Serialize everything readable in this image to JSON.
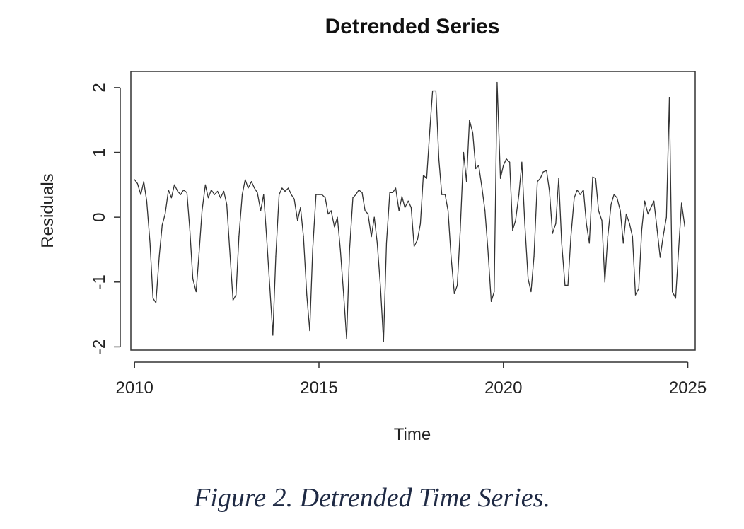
{
  "caption": "Figure 2. Detrended Time Series.",
  "chart_data": {
    "type": "line",
    "title": "Detrended Series",
    "xlabel": "Time",
    "ylabel": "Residuals",
    "xlim": [
      2009.9,
      2025.2
    ],
    "ylim": [
      -2.05,
      2.25
    ],
    "xticks": [
      2010,
      2015,
      2020,
      2025
    ],
    "xtick_labels": [
      "2010",
      "2015",
      "2020",
      "2025"
    ],
    "yticks": [
      -2,
      -1,
      0,
      1,
      2
    ],
    "ytick_labels": [
      "-2",
      "-1",
      "0",
      "1",
      "2"
    ],
    "grid": false,
    "legend": "none",
    "series": [
      {
        "color": "#333333",
        "points": [
          [
            2010.0,
            0.58
          ],
          [
            2010.08,
            0.52
          ],
          [
            2010.17,
            0.35
          ],
          [
            2010.25,
            0.55
          ],
          [
            2010.33,
            0.25
          ],
          [
            2010.42,
            -0.4
          ],
          [
            2010.5,
            -1.25
          ],
          [
            2010.58,
            -1.32
          ],
          [
            2010.67,
            -0.6
          ],
          [
            2010.75,
            -0.12
          ],
          [
            2010.83,
            0.05
          ],
          [
            2010.92,
            0.42
          ],
          [
            2011.0,
            0.3
          ],
          [
            2011.08,
            0.5
          ],
          [
            2011.17,
            0.4
          ],
          [
            2011.25,
            0.35
          ],
          [
            2011.33,
            0.42
          ],
          [
            2011.42,
            0.38
          ],
          [
            2011.5,
            -0.2
          ],
          [
            2011.58,
            -0.95
          ],
          [
            2011.67,
            -1.15
          ],
          [
            2011.75,
            -0.55
          ],
          [
            2011.83,
            0.1
          ],
          [
            2011.92,
            0.5
          ],
          [
            2012.0,
            0.3
          ],
          [
            2012.08,
            0.42
          ],
          [
            2012.17,
            0.35
          ],
          [
            2012.25,
            0.4
          ],
          [
            2012.33,
            0.3
          ],
          [
            2012.42,
            0.4
          ],
          [
            2012.5,
            0.2
          ],
          [
            2012.58,
            -0.5
          ],
          [
            2012.67,
            -1.28
          ],
          [
            2012.75,
            -1.2
          ],
          [
            2012.83,
            -0.3
          ],
          [
            2012.92,
            0.35
          ],
          [
            2013.0,
            0.58
          ],
          [
            2013.08,
            0.45
          ],
          [
            2013.17,
            0.55
          ],
          [
            2013.25,
            0.45
          ],
          [
            2013.33,
            0.38
          ],
          [
            2013.42,
            0.1
          ],
          [
            2013.5,
            0.35
          ],
          [
            2013.58,
            -0.3
          ],
          [
            2013.67,
            -1.1
          ],
          [
            2013.75,
            -1.82
          ],
          [
            2013.83,
            -0.6
          ],
          [
            2013.92,
            0.35
          ],
          [
            2014.0,
            0.45
          ],
          [
            2014.08,
            0.4
          ],
          [
            2014.17,
            0.45
          ],
          [
            2014.25,
            0.35
          ],
          [
            2014.33,
            0.28
          ],
          [
            2014.42,
            -0.05
          ],
          [
            2014.5,
            0.15
          ],
          [
            2014.58,
            -0.3
          ],
          [
            2014.67,
            -1.2
          ],
          [
            2014.75,
            -1.75
          ],
          [
            2014.83,
            -0.5
          ],
          [
            2014.92,
            0.35
          ],
          [
            2015.0,
            0.35
          ],
          [
            2015.08,
            0.35
          ],
          [
            2015.17,
            0.3
          ],
          [
            2015.25,
            0.05
          ],
          [
            2015.33,
            0.1
          ],
          [
            2015.42,
            -0.15
          ],
          [
            2015.5,
            0.0
          ],
          [
            2015.58,
            -0.5
          ],
          [
            2015.67,
            -1.2
          ],
          [
            2015.75,
            -1.88
          ],
          [
            2015.83,
            -0.5
          ],
          [
            2015.92,
            0.3
          ],
          [
            2016.0,
            0.35
          ],
          [
            2016.08,
            0.42
          ],
          [
            2016.17,
            0.38
          ],
          [
            2016.25,
            0.1
          ],
          [
            2016.33,
            0.05
          ],
          [
            2016.42,
            -0.3
          ],
          [
            2016.5,
            0.0
          ],
          [
            2016.58,
            -0.4
          ],
          [
            2016.67,
            -1.1
          ],
          [
            2016.75,
            -1.92
          ],
          [
            2016.83,
            -0.4
          ],
          [
            2016.92,
            0.38
          ],
          [
            2017.0,
            0.38
          ],
          [
            2017.08,
            0.45
          ],
          [
            2017.17,
            0.1
          ],
          [
            2017.25,
            0.32
          ],
          [
            2017.33,
            0.15
          ],
          [
            2017.42,
            0.25
          ],
          [
            2017.5,
            0.15
          ],
          [
            2017.58,
            -0.45
          ],
          [
            2017.67,
            -0.35
          ],
          [
            2017.75,
            -0.1
          ],
          [
            2017.83,
            0.65
          ],
          [
            2017.92,
            0.6
          ],
          [
            2018.0,
            1.3
          ],
          [
            2018.08,
            1.95
          ],
          [
            2018.17,
            1.95
          ],
          [
            2018.25,
            0.9
          ],
          [
            2018.33,
            0.35
          ],
          [
            2018.42,
            0.35
          ],
          [
            2018.5,
            0.1
          ],
          [
            2018.58,
            -0.6
          ],
          [
            2018.67,
            -1.18
          ],
          [
            2018.75,
            -1.05
          ],
          [
            2018.83,
            -0.2
          ],
          [
            2018.92,
            1.0
          ],
          [
            2019.0,
            0.55
          ],
          [
            2019.08,
            1.5
          ],
          [
            2019.17,
            1.3
          ],
          [
            2019.25,
            0.75
          ],
          [
            2019.33,
            0.8
          ],
          [
            2019.42,
            0.45
          ],
          [
            2019.5,
            0.1
          ],
          [
            2019.58,
            -0.5
          ],
          [
            2019.67,
            -1.3
          ],
          [
            2019.75,
            -1.15
          ],
          [
            2019.83,
            2.08
          ],
          [
            2019.92,
            0.6
          ],
          [
            2020.0,
            0.8
          ],
          [
            2020.08,
            0.9
          ],
          [
            2020.17,
            0.85
          ],
          [
            2020.25,
            -0.2
          ],
          [
            2020.33,
            -0.05
          ],
          [
            2020.42,
            0.35
          ],
          [
            2020.5,
            0.85
          ],
          [
            2020.58,
            -0.1
          ],
          [
            2020.67,
            -0.95
          ],
          [
            2020.75,
            -1.15
          ],
          [
            2020.83,
            -0.6
          ],
          [
            2020.92,
            0.55
          ],
          [
            2021.0,
            0.6
          ],
          [
            2021.08,
            0.7
          ],
          [
            2021.17,
            0.72
          ],
          [
            2021.25,
            0.4
          ],
          [
            2021.33,
            -0.25
          ],
          [
            2021.42,
            -0.1
          ],
          [
            2021.5,
            0.6
          ],
          [
            2021.58,
            -0.4
          ],
          [
            2021.67,
            -1.05
          ],
          [
            2021.75,
            -1.05
          ],
          [
            2021.83,
            -0.3
          ],
          [
            2021.92,
            0.3
          ],
          [
            2022.0,
            0.42
          ],
          [
            2022.08,
            0.35
          ],
          [
            2022.17,
            0.42
          ],
          [
            2022.25,
            -0.1
          ],
          [
            2022.33,
            -0.4
          ],
          [
            2022.42,
            0.62
          ],
          [
            2022.5,
            0.6
          ],
          [
            2022.58,
            0.1
          ],
          [
            2022.67,
            -0.05
          ],
          [
            2022.75,
            -1.0
          ],
          [
            2022.83,
            -0.3
          ],
          [
            2022.92,
            0.2
          ],
          [
            2023.0,
            0.35
          ],
          [
            2023.08,
            0.3
          ],
          [
            2023.17,
            0.1
          ],
          [
            2023.25,
            -0.4
          ],
          [
            2023.33,
            0.05
          ],
          [
            2023.42,
            -0.1
          ],
          [
            2023.5,
            -0.3
          ],
          [
            2023.58,
            -1.2
          ],
          [
            2023.67,
            -1.1
          ],
          [
            2023.75,
            -0.2
          ],
          [
            2023.83,
            0.25
          ],
          [
            2023.92,
            0.05
          ],
          [
            2024.0,
            0.15
          ],
          [
            2024.08,
            0.25
          ],
          [
            2024.17,
            -0.2
          ],
          [
            2024.25,
            -0.62
          ],
          [
            2024.33,
            -0.3
          ],
          [
            2024.42,
            0.0
          ],
          [
            2024.5,
            1.85
          ],
          [
            2024.58,
            -1.15
          ],
          [
            2024.67,
            -1.25
          ],
          [
            2024.75,
            -0.5
          ],
          [
            2024.83,
            0.22
          ],
          [
            2024.92,
            -0.15
          ]
        ]
      }
    ]
  }
}
